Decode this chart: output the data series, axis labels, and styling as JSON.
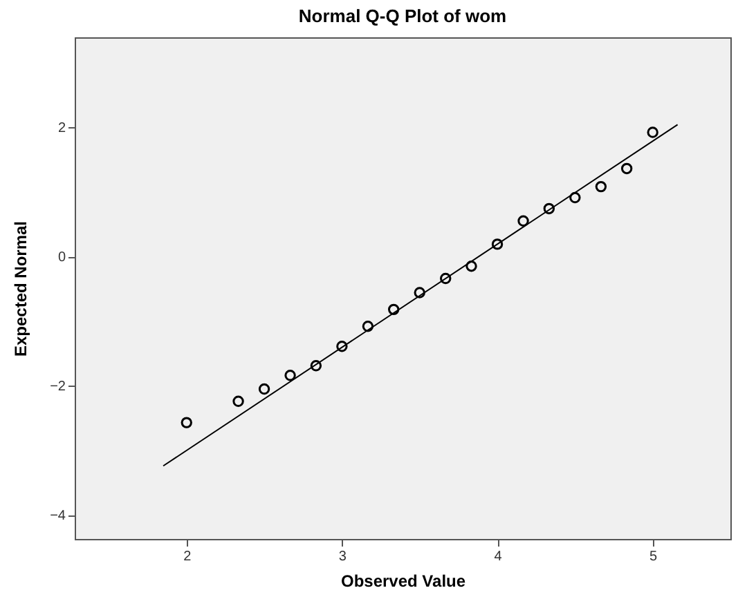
{
  "chart_data": {
    "type": "scatter",
    "title": "Normal Q-Q Plot of wom",
    "xlabel": "Observed Value",
    "ylabel": "Expected Normal",
    "grid": false,
    "xlim": [
      1.28,
      5.5
    ],
    "xticks": [
      2,
      3,
      4,
      5
    ],
    "ylim": [
      -4.37,
      3.39
    ],
    "yticks": [
      -4,
      -2,
      0,
      2
    ],
    "series": [
      {
        "marker": "circle",
        "color": "#000000",
        "x": [
          2,
          2.333,
          2.5,
          2.667,
          2.833,
          3,
          3.167,
          3.333,
          3.5,
          3.667,
          3.833,
          4,
          4.167,
          4.333,
          4.5,
          4.667,
          4.833,
          5
        ],
        "values": [
          -2.57,
          -2.24,
          -2.05,
          -1.84,
          -1.69,
          -1.39,
          -1.08,
          -0.82,
          -0.56,
          -0.34,
          -0.15,
          0.19,
          0.55,
          0.74,
          0.91,
          1.08,
          1.36,
          1.92
        ]
      },
      {
        "type": "line",
        "marker": "none",
        "color": "#000000",
        "x": [
          1.85,
          5.16
        ],
        "values": [
          -3.24,
          2.04
        ]
      }
    ]
  }
}
